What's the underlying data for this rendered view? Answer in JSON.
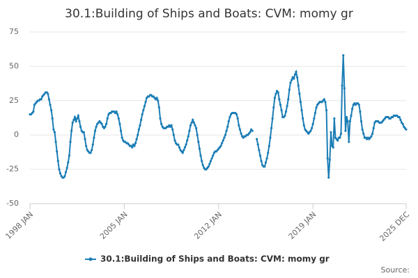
{
  "chart_data": {
    "type": "line",
    "title": "30.1:Building of Ships and Boats: CVM: momy gr",
    "source": "Source:",
    "categories": [
      "1998 JAN",
      null,
      null,
      null,
      null,
      null,
      null,
      null,
      null,
      null,
      null,
      null,
      null,
      null,
      null,
      null,
      null,
      null,
      null,
      null,
      null,
      null,
      null,
      null,
      null,
      null,
      null,
      null,
      null,
      null,
      null,
      null,
      null,
      null,
      null,
      null,
      null,
      null,
      null,
      null,
      null,
      null,
      null,
      null,
      null,
      null,
      null,
      null,
      null,
      null,
      null,
      null,
      null,
      null,
      null,
      null,
      null,
      null,
      null,
      null,
      null,
      null,
      null,
      null,
      null,
      null,
      null,
      null,
      null,
      null,
      null,
      null,
      null,
      null,
      null,
      null,
      null,
      null,
      null,
      null,
      null,
      null,
      null,
      null,
      "2005 JAN",
      null,
      null,
      null,
      null,
      null,
      null,
      null,
      null,
      null,
      null,
      null,
      null,
      null,
      null,
      null,
      null,
      null,
      null,
      null,
      null,
      null,
      null,
      null,
      null,
      null,
      null,
      null,
      null,
      null,
      null,
      null,
      null,
      null,
      null,
      null,
      null,
      null,
      null,
      null,
      null,
      null,
      null,
      null,
      null,
      null,
      null,
      null,
      null,
      null,
      null,
      null,
      null,
      null,
      null,
      null,
      null,
      null,
      null,
      null,
      null,
      null,
      null,
      null,
      null,
      null,
      null,
      null,
      null,
      null,
      null,
      null,
      null,
      null,
      null,
      null,
      null,
      null,
      null,
      null,
      null,
      null,
      null,
      null,
      "2012 JAN",
      null,
      null,
      null,
      null,
      null,
      null,
      null,
      null,
      null,
      null,
      null,
      null,
      null,
      null,
      null,
      null,
      null,
      null,
      null,
      null,
      null,
      null,
      null,
      null,
      null,
      null,
      null,
      null,
      null,
      null,
      null,
      null,
      null,
      null,
      null,
      null,
      null,
      null,
      null,
      null,
      null,
      null,
      null,
      null,
      null,
      null,
      null,
      null,
      null,
      null,
      null,
      null,
      null,
      null,
      null,
      null,
      null,
      null,
      null,
      null,
      null,
      null,
      null,
      null,
      null,
      null,
      null,
      null,
      null,
      null,
      null,
      null,
      null,
      null,
      null,
      null,
      null,
      null,
      null,
      null,
      null,
      null,
      null,
      "2019 JAN",
      null,
      null,
      null,
      null,
      null,
      null,
      null,
      null,
      null,
      null,
      null,
      null,
      null,
      null,
      null,
      null,
      null,
      null,
      null,
      null,
      null,
      null,
      null,
      null,
      null,
      null,
      null,
      null,
      null,
      null,
      null,
      null,
      null,
      null,
      null,
      null,
      null,
      null,
      null,
      null,
      null,
      null,
      null,
      null,
      null,
      null,
      null,
      null,
      null,
      null,
      null,
      null,
      null,
      null,
      null,
      null,
      null,
      null,
      null,
      null,
      null,
      null,
      null,
      null,
      null,
      null,
      null,
      null,
      null,
      null,
      null,
      null,
      null,
      null,
      null,
      null,
      null,
      null,
      null,
      null,
      null,
      null,
      "2025 DEC"
    ],
    "series": [
      {
        "name": "30.1:Building of Ships and Boats: CVM: momy gr",
        "color": "#1a7db5",
        "values": [
          15,
          15,
          16,
          17,
          22,
          23,
          24,
          25,
          25,
          26,
          26,
          28,
          29,
          30,
          31,
          31,
          30,
          26,
          22,
          18,
          12,
          4,
          2,
          -5,
          -12,
          -19,
          -25,
          -28,
          -30,
          -31,
          -31,
          -30,
          -27,
          -24,
          -20,
          -15,
          -5,
          3,
          9,
          11,
          13,
          10,
          12,
          14,
          10,
          6,
          3,
          2,
          2,
          -3,
          -8,
          -11,
          -12,
          -13,
          -13,
          -11,
          -7,
          -2,
          3,
          6,
          8,
          9,
          10,
          9,
          8,
          6,
          5,
          6,
          8,
          12,
          15,
          16,
          16,
          17,
          17,
          17,
          16,
          17,
          15,
          12,
          8,
          3,
          -2,
          -4,
          -5,
          -5,
          -6,
          -6,
          -7,
          -8,
          -8,
          -9,
          -7,
          -8,
          -6,
          -3,
          0,
          4,
          7,
          11,
          15,
          18,
          21,
          24,
          27,
          28,
          28,
          29,
          29,
          28,
          28,
          27,
          26,
          27,
          25,
          20,
          12,
          8,
          6,
          5,
          5,
          5,
          6,
          6,
          7,
          6,
          7,
          4,
          0,
          -4,
          -6,
          -7,
          -7,
          -9,
          -11,
          -12,
          -13,
          -11,
          -9,
          -7,
          -4,
          -1,
          3,
          7,
          9,
          11,
          9,
          7,
          5,
          0,
          -5,
          -10,
          -15,
          -19,
          -22,
          -24,
          -25,
          -25,
          -24,
          -23,
          -21,
          -19,
          -17,
          -15,
          -13,
          -12,
          -12,
          -11,
          -10,
          -9,
          -8,
          -6,
          -4,
          -2,
          0,
          3,
          6,
          10,
          13,
          15,
          16,
          16,
          16,
          16,
          15,
          12,
          7,
          4,
          1,
          -1,
          -2,
          -1,
          -1,
          0,
          0,
          1,
          2,
          4,
          3,
          null,
          null,
          null,
          -3,
          -7,
          -11,
          -15,
          -19,
          -22,
          -23,
          -23,
          -20,
          -17,
          -13,
          -8,
          -2,
          5,
          12,
          20,
          27,
          30,
          32,
          31,
          26,
          22,
          18,
          13,
          13,
          14,
          17,
          21,
          26,
          33,
          38,
          40,
          42,
          41,
          44,
          46,
          42,
          36,
          30,
          24,
          18,
          12,
          7,
          4,
          3,
          2,
          1,
          2,
          3,
          5,
          8,
          12,
          16,
          20,
          22,
          23,
          24,
          24,
          24,
          25,
          26,
          24,
          18,
          -17,
          -31,
          -18,
          2,
          -8,
          -9,
          12,
          -2,
          -3,
          -4,
          -2,
          -2,
          1,
          36,
          58,
          34,
          3,
          13,
          10,
          -5,
          10,
          14,
          19,
          22,
          23,
          22,
          23,
          23,
          22,
          17,
          10,
          4,
          1,
          -2,
          -2,
          -3,
          -2,
          -3,
          -2,
          -1,
          1,
          5,
          9,
          10,
          10,
          10,
          9,
          9,
          9,
          10,
          11,
          12,
          13,
          13,
          13,
          12,
          12,
          13,
          13,
          14,
          14,
          14,
          14,
          13,
          13,
          11,
          9,
          8,
          6,
          5,
          4
        ]
      }
    ],
    "ylim": [
      -50,
      75
    ],
    "yticks": [
      -50,
      -25,
      0,
      25,
      50,
      75
    ],
    "grid": true,
    "legend": "bottom"
  }
}
